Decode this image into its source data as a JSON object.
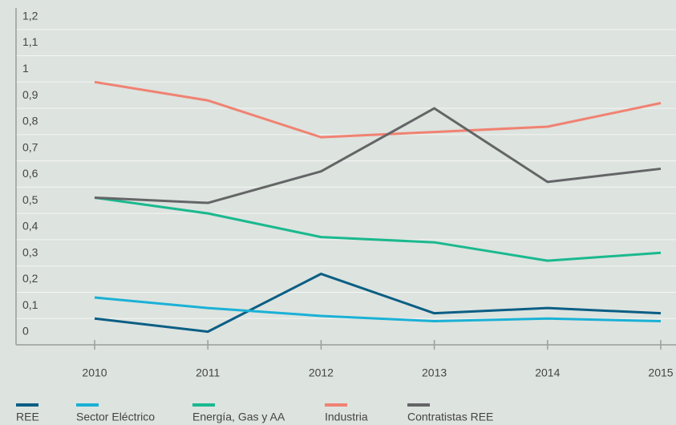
{
  "chart_data": {
    "type": "line",
    "categories": [
      "2010",
      "2011",
      "2012",
      "2013",
      "2014",
      "2015"
    ],
    "series": [
      {
        "name": "REE",
        "color": "#0b5e84",
        "values": [
          0.1,
          0.05,
          0.27,
          0.12,
          0.14,
          0.12
        ]
      },
      {
        "name": "Sector Eléctrico",
        "color": "#1ab1d6",
        "values": [
          0.18,
          0.14,
          0.11,
          0.09,
          0.1,
          0.09
        ]
      },
      {
        "name": "Energía, Gas y AA",
        "color": "#1ab98e",
        "values": [
          0.56,
          0.5,
          0.41,
          0.39,
          0.32,
          0.35
        ]
      },
      {
        "name": "Industria",
        "color": "#f08272",
        "values": [
          1,
          0.93,
          0.79,
          0.81,
          0.83,
          0.92
        ]
      },
      {
        "name": "Contratistas REE",
        "color": "#646567",
        "values": [
          0.56,
          0.54,
          0.66,
          0.9,
          0.62,
          0.67
        ]
      }
    ],
    "ylim": [
      0,
      1.3
    ],
    "yticks": [
      0,
      {
        "value": 0.1,
        "label": "0,1"
      },
      {
        "value": 0.2,
        "label": "0,2"
      },
      {
        "value": 0.3,
        "label": "0,3"
      },
      {
        "value": 0.4,
        "label": "0,4"
      },
      {
        "value": 0.5,
        "label": "0,5"
      },
      {
        "value": 0.6,
        "label": "0,6"
      },
      {
        "value": 0.7,
        "label": "0,7"
      },
      {
        "value": 0.8,
        "label": "0,8"
      },
      {
        "value": 0.9,
        "label": "0,9"
      },
      1,
      {
        "value": 1.1,
        "label": "1,1"
      },
      {
        "value": 1.2,
        "label": "1,2"
      }
    ],
    "grid": true,
    "legend": "bottom"
  }
}
